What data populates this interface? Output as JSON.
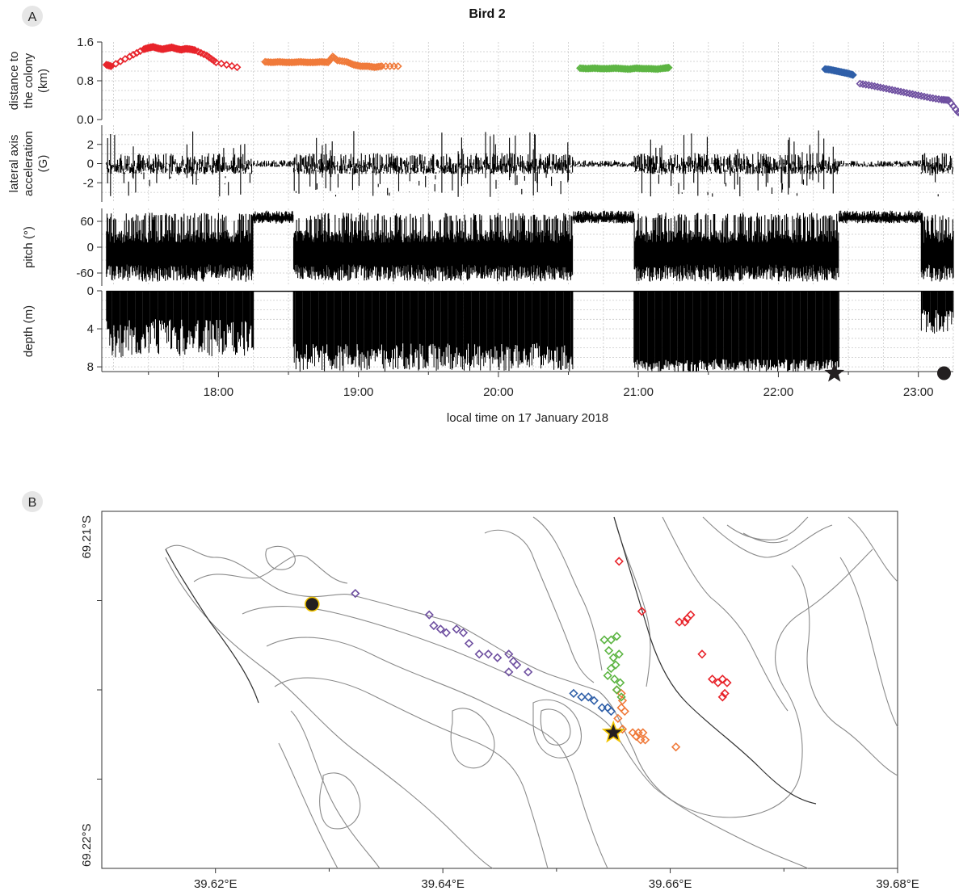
{
  "figure": {
    "panel_labels": [
      "A",
      "B"
    ],
    "title": "Bird 2"
  },
  "colors": {
    "trip1": "#e8242b",
    "trip2": "#f07a3a",
    "trip3": "#5db543",
    "trip4": "#2f5fa8",
    "trip5": "#6e4fa0",
    "trace": "#000000",
    "contour": "#8a8a8a",
    "marker_fill": "#231f20",
    "marker_edge": "#f2c500"
  },
  "chart_data": [
    {
      "type": "scatter",
      "id": "distance",
      "ylabel": [
        "distance to",
        "the colony",
        "(km)"
      ],
      "yticks": [
        "1.6",
        "0.8",
        "0.0"
      ],
      "ylim": [
        0,
        1.6
      ],
      "xlim": [
        "17:10",
        "23:15"
      ],
      "series": [
        {
          "color_key": "trip1",
          "x": [
            "17:12",
            "17:14",
            "17:22",
            "17:28",
            "17:30",
            "17:32",
            "17:34",
            "17:36",
            "17:38",
            "17:40",
            "17:42",
            "17:44",
            "17:46",
            "17:48",
            "17:50",
            "17:55",
            "17:59",
            "18:08"
          ],
          "y": [
            1.13,
            1.1,
            1.3,
            1.45,
            1.48,
            1.5,
            1.47,
            1.45,
            1.47,
            1.49,
            1.46,
            1.44,
            1.46,
            1.45,
            1.43,
            1.32,
            1.18,
            1.08
          ]
        },
        {
          "color_key": "trip2",
          "x": [
            "18:20",
            "18:23",
            "18:26",
            "18:29",
            "18:32",
            "18:35",
            "18:38",
            "18:41",
            "18:44",
            "18:47",
            "18:49",
            "18:51",
            "18:55",
            "18:58",
            "19:01",
            "19:04",
            "19:07",
            "19:10",
            "19:17"
          ],
          "y": [
            1.19,
            1.18,
            1.19,
            1.18,
            1.18,
            1.19,
            1.18,
            1.18,
            1.19,
            1.18,
            1.3,
            1.22,
            1.19,
            1.13,
            1.1,
            1.1,
            1.08,
            1.1,
            1.1
          ]
        },
        {
          "color_key": "trip3",
          "x": [
            "20:35",
            "20:38",
            "20:41",
            "20:44",
            "20:47",
            "20:50",
            "20:53",
            "20:56",
            "20:59",
            "21:02",
            "21:05",
            "21:08",
            "21:11",
            "21:13"
          ],
          "y": [
            1.06,
            1.05,
            1.06,
            1.05,
            1.05,
            1.06,
            1.05,
            1.04,
            1.06,
            1.05,
            1.05,
            1.04,
            1.06,
            1.07
          ]
        },
        {
          "color_key": "trip4",
          "x": [
            "22:20",
            "22:22",
            "22:24",
            "22:26",
            "22:28",
            "22:30",
            "22:32"
          ],
          "y": [
            1.04,
            1.03,
            1.01,
            0.99,
            0.97,
            0.95,
            0.92
          ]
        },
        {
          "color_key": "trip5",
          "x": [
            "22:35",
            "22:40",
            "22:45",
            "22:50",
            "22:55",
            "23:00",
            "23:05",
            "23:10",
            "23:13",
            "23:17",
            "23:20",
            "23:22",
            "23:24"
          ],
          "y": [
            0.74,
            0.7,
            0.65,
            0.6,
            0.55,
            0.5,
            0.45,
            0.41,
            0.4,
            0.15,
            0.07,
            0.04,
            0.03
          ]
        }
      ]
    },
    {
      "type": "line",
      "id": "acceleration",
      "ylabel": [
        "lateral axis",
        "acceleration",
        "(G)"
      ],
      "yticks": [
        "2",
        "0",
        "-2"
      ],
      "ylim": [
        -4,
        4
      ]
    },
    {
      "type": "line",
      "id": "pitch",
      "ylabel": [
        "pitch (°)"
      ],
      "yticks": [
        "60",
        "0",
        "-60"
      ],
      "ylim": [
        -90,
        90
      ]
    },
    {
      "type": "line",
      "id": "depth",
      "ylabel": [
        "depth (m)"
      ],
      "yticks": [
        "0",
        "4",
        "8"
      ],
      "ylim": [
        0,
        8.5
      ],
      "xticks": [
        "18:00",
        "19:00",
        "20:00",
        "21:00",
        "22:00",
        "23:00"
      ],
      "xlabel": "local time on 17 January 2018",
      "events": [
        {
          "marker": "star",
          "time": "22:24"
        },
        {
          "marker": "circle",
          "time": "23:11"
        }
      ]
    },
    {
      "type": "map",
      "id": "map",
      "ylabel_top": "69.21°S",
      "ylabel_bottom": "69.22°S",
      "xticks": [
        "39.62°E",
        "39.64°E",
        "39.66°E",
        "39.68°E"
      ],
      "xlim": [
        39.61,
        39.68
      ],
      "ylim": [
        -69.22,
        -69.21
      ],
      "grid": false,
      "markers": [
        {
          "marker": "circle",
          "lon": 39.6285,
          "lat": -69.2126
        },
        {
          "marker": "star",
          "lon": 39.655,
          "lat": -69.2162
        }
      ],
      "series": [
        {
          "color_key": "trip1",
          "lon": [
            39.6555,
            39.6575,
            39.6608,
            39.6613,
            39.6615,
            39.6618,
            39.6628,
            39.6637,
            39.6642,
            39.6646,
            39.665,
            39.6648,
            39.6646
          ],
          "lat": [
            -69.2114,
            -69.2128,
            -69.2131,
            -69.2131,
            -69.213,
            -69.2129,
            -69.214,
            -69.2147,
            -69.2148,
            -69.2147,
            -69.2148,
            -69.2151,
            -69.2152
          ]
        },
        {
          "color_key": "trip2",
          "lon": [
            39.6553,
            39.6557,
            39.6558,
            39.656,
            39.6557,
            39.6554,
            39.6558,
            39.6567,
            39.6572,
            39.6574,
            39.657,
            39.6576,
            39.6578,
            39.6605
          ],
          "lat": [
            -69.215,
            -69.2151,
            -69.2153,
            -69.2156,
            -69.2155,
            -69.2158,
            -69.2161,
            -69.2162,
            -69.2162,
            -69.2164,
            -69.2163,
            -69.2162,
            -69.2164,
            -69.2166
          ]
        },
        {
          "color_key": "trip3",
          "lon": [
            39.6542,
            39.6548,
            39.6553,
            39.6546,
            39.655,
            39.6555,
            39.6552,
            39.6548,
            39.6545,
            39.6551,
            39.6556,
            39.6553,
            39.6557
          ],
          "lat": [
            -69.2136,
            -69.2136,
            -69.2135,
            -69.2139,
            -69.2141,
            -69.214,
            -69.2143,
            -69.2144,
            -69.2146,
            -69.2147,
            -69.2148,
            -69.215,
            -69.2152
          ]
        },
        {
          "color_key": "trip4",
          "lon": [
            39.6515,
            39.6522,
            39.6528,
            39.6533,
            39.654,
            39.6545,
            39.6548
          ],
          "lat": [
            -69.2151,
            -69.2152,
            -69.2152,
            -69.2153,
            -69.2155,
            -69.2155,
            -69.2156
          ]
        },
        {
          "color_key": "trip5",
          "lon": [
            39.6323,
            39.6388,
            39.6392,
            39.6398,
            39.6403,
            39.6412,
            39.6418,
            39.6423,
            39.6432,
            39.644,
            39.6448,
            39.6458,
            39.6462,
            39.6465,
            39.6458,
            39.6475
          ],
          "lat": [
            -69.2123,
            -69.2129,
            -69.2132,
            -69.2133,
            -69.2134,
            -69.2133,
            -69.2134,
            -69.2137,
            -69.214,
            -69.214,
            -69.2141,
            -69.214,
            -69.2142,
            -69.2143,
            -69.2145,
            -69.2145
          ]
        }
      ]
    }
  ]
}
